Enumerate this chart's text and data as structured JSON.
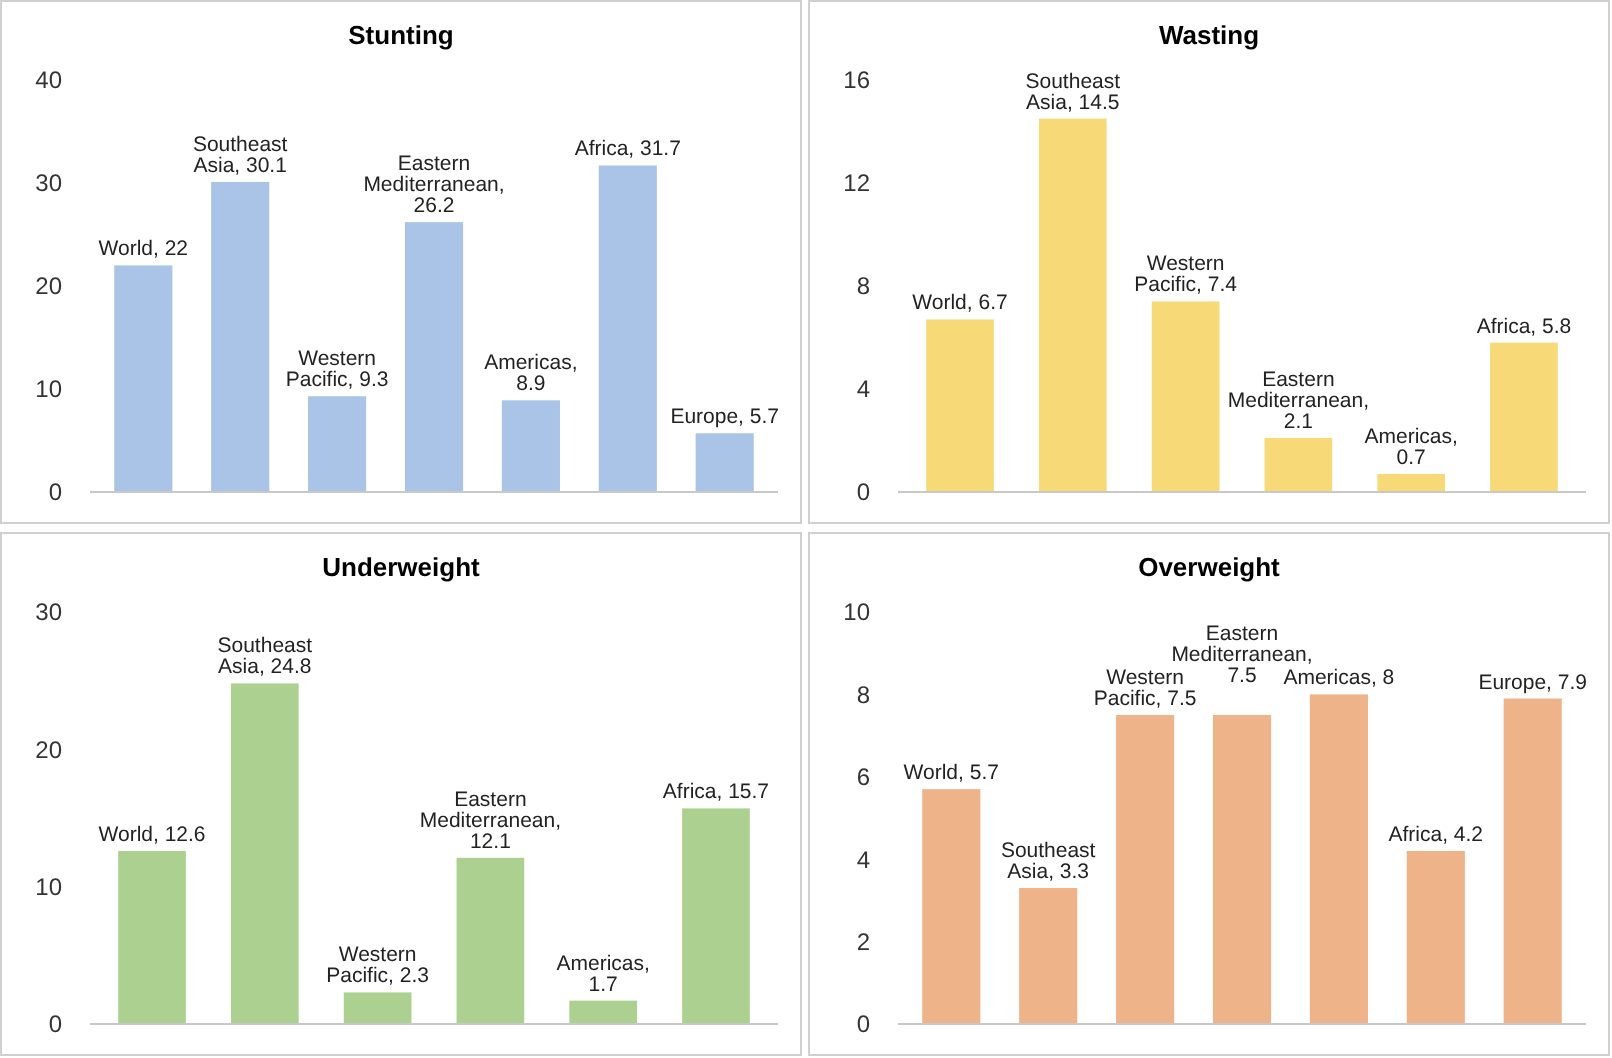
{
  "chart_data": [
    {
      "type": "bar",
      "title": "Stunting",
      "categories": [
        null,
        null,
        null,
        null,
        null,
        null,
        null
      ],
      "values": [
        22,
        30.1,
        9.3,
        26.2,
        8.9,
        31.7,
        5.7
      ],
      "value_labels": [
        "World, 22",
        "Southeast Asia, 30.1",
        "Western Pacific, 9.3",
        "Eastern Mediterranean, 26.2",
        "Americas, 8.9",
        "Africa, 31.7",
        "Europe, 5.7"
      ],
      "color": "#a9c4e6",
      "ylim": [
        0,
        40
      ],
      "yticks": [
        0,
        10,
        20,
        30,
        40
      ]
    },
    {
      "type": "bar",
      "title": "Wasting",
      "categories": [
        null,
        null,
        null,
        null,
        null,
        null
      ],
      "values": [
        6.7,
        14.5,
        7.4,
        2.1,
        0.7,
        5.8
      ],
      "value_labels": [
        "World, 6.7",
        "Southeast Asia, 14.5",
        "Western Pacific, 7.4",
        "Eastern Mediterranean, 2.1",
        "Americas, 0.7",
        "Africa, 5.8"
      ],
      "color": "#f8d978",
      "ylim": [
        0,
        16
      ],
      "yticks": [
        0,
        4,
        8,
        12,
        16
      ]
    },
    {
      "type": "bar",
      "title": "Underweight",
      "categories": [
        null,
        null,
        null,
        null,
        null,
        null
      ],
      "values": [
        12.6,
        24.8,
        2.3,
        12.1,
        1.7,
        15.7
      ],
      "value_labels": [
        "World, 12.6",
        "Southeast Asia, 24.8",
        "Western Pacific, 2.3",
        "Eastern Mediterranean, 12.1",
        "Americas, 1.7",
        "Africa, 15.7"
      ],
      "color": "#abd08f",
      "ylim": [
        0,
        30
      ],
      "yticks": [
        0,
        10,
        20,
        30
      ]
    },
    {
      "type": "bar",
      "title": "Overweight",
      "categories": [
        null,
        null,
        null,
        null,
        null,
        null,
        null
      ],
      "values": [
        5.7,
        3.3,
        7.5,
        7.5,
        8,
        4.2,
        7.9
      ],
      "value_labels": [
        "World, 5.7",
        "Southeast Asia, 3.3",
        "Western Pacific, 7.5",
        "Eastern Mediterranean, 7.5",
        "Americas, 8",
        "Africa, 4.2",
        "Europe, 7.9"
      ],
      "color": "#efb389",
      "ylim": [
        0,
        10
      ],
      "yticks": [
        0,
        2,
        4,
        6,
        8,
        10
      ]
    }
  ]
}
